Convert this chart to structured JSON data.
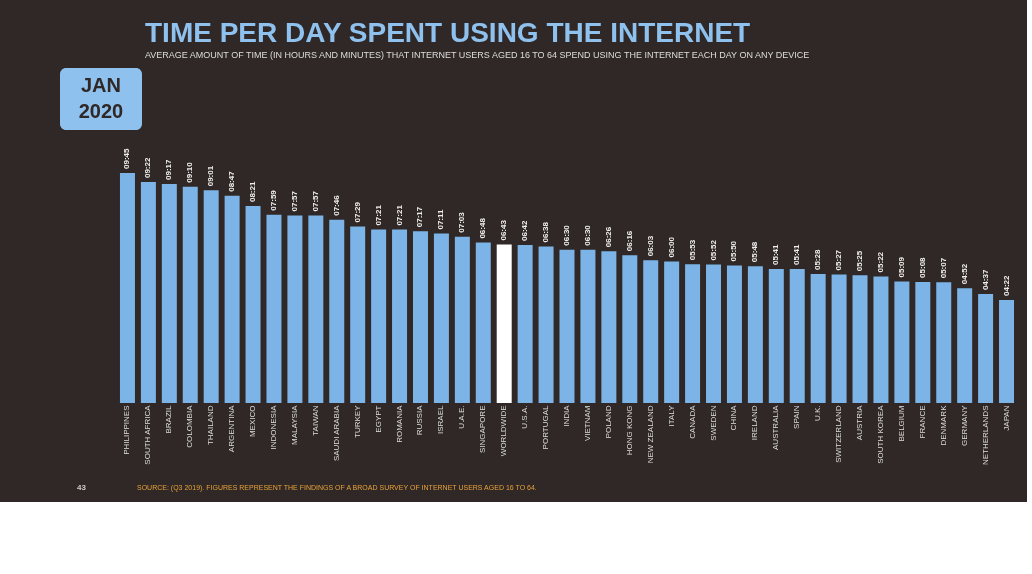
{
  "chart_data": {
    "type": "bar",
    "title": "TIME PER DAY SPENT USING THE INTERNET",
    "subtitle": "AVERAGE AMOUNT OF TIME (IN HOURS AND MINUTES) THAT INTERNET USERS AGED 16 TO 64 SPEND USING THE INTERNET EACH DAY ON ANY DEVICE",
    "categories": [
      "PHILIPPINES",
      "SOUTH AFRICA",
      "BRAZIL",
      "COLOMBIA",
      "THAILAND",
      "ARGENTINA",
      "MEXICO",
      "INDONESIA",
      "MALAYSIA",
      "TAIWAN",
      "SAUDI ARABIA",
      "TURKEY",
      "EGYPT",
      "ROMANIA",
      "RUSSIA",
      "ISRAEL",
      "U.A.E.",
      "SINGAPORE",
      "WORLDWIDE",
      "U.S.A.",
      "PORTUGAL",
      "INDIA",
      "VIETNAM",
      "POLAND",
      "HONG KONG",
      "NEW ZEALAND",
      "ITALY",
      "CANADA",
      "SWEDEN",
      "CHINA",
      "IRELAND",
      "AUSTRALIA",
      "SPAIN",
      "U.K.",
      "SWITZERLAND",
      "AUSTRIA",
      "SOUTH KOREA",
      "BELGIUM",
      "FRANCE",
      "DENMARK",
      "GERMANY",
      "NETHERLANDS",
      "JAPAN"
    ],
    "values": [
      9.75,
      9.367,
      9.283,
      9.167,
      9.017,
      8.783,
      8.35,
      7.983,
      7.95,
      7.95,
      7.767,
      7.483,
      7.35,
      7.35,
      7.283,
      7.183,
      7.05,
      6.8,
      6.717,
      6.7,
      6.633,
      6.5,
      6.5,
      6.433,
      6.267,
      6.05,
      6.0,
      5.883,
      5.867,
      5.833,
      5.8,
      5.683,
      5.683,
      5.467,
      5.45,
      5.417,
      5.367,
      5.15,
      5.133,
      5.117,
      4.867,
      4.617,
      4.367
    ],
    "value_labels": [
      "09:45",
      "09:22",
      "09:17",
      "09:10",
      "09:01",
      "08:47",
      "08:21",
      "07:59",
      "07:57",
      "07:57",
      "07:46",
      "07:29",
      "07:21",
      "07:21",
      "07:17",
      "07:11",
      "07:03",
      "06:48",
      "06:43",
      "06:42",
      "06:38",
      "06:30",
      "06:30",
      "06:26",
      "06:16",
      "06:03",
      "06:00",
      "05:53",
      "05:52",
      "05:50",
      "05:48",
      "05:41",
      "05:41",
      "05:28",
      "05:27",
      "05:25",
      "05:22",
      "05:09",
      "05:08",
      "05:07",
      "04:52",
      "04:37",
      "04:22"
    ],
    "colors": [
      "#7cb4e8",
      "#7cb4e8",
      "#7cb4e8",
      "#7cb4e8",
      "#7cb4e8",
      "#7cb4e8",
      "#7cb4e8",
      "#7cb4e8",
      "#7cb4e8",
      "#7cb4e8",
      "#7cb4e8",
      "#7cb4e8",
      "#7cb4e8",
      "#7cb4e8",
      "#7cb4e8",
      "#7cb4e8",
      "#7cb4e8",
      "#7cb4e8",
      "#ffffff",
      "#7cb4e8",
      "#7cb4e8",
      "#7cb4e8",
      "#7cb4e8",
      "#7cb4e8",
      "#7cb4e8",
      "#7cb4e8",
      "#7cb4e8",
      "#7cb4e8",
      "#7cb4e8",
      "#7cb4e8",
      "#7cb4e8",
      "#7cb4e8",
      "#7cb4e8",
      "#7cb4e8",
      "#7cb4e8",
      "#7cb4e8",
      "#7cb4e8",
      "#7cb4e8",
      "#7cb4e8",
      "#7cb4e8",
      "#7cb4e8",
      "#7cb4e8",
      "#7cb4e8"
    ],
    "annotations": [
      "JAN 2020",
      "SOURCE: (Q3 2019). FIGURES REPRESENT THE FINDINGS OF A BROAD SURVEY OF INTERNET USERS AGED 16 TO 64.",
      "43"
    ],
    "grid": false
  }
}
